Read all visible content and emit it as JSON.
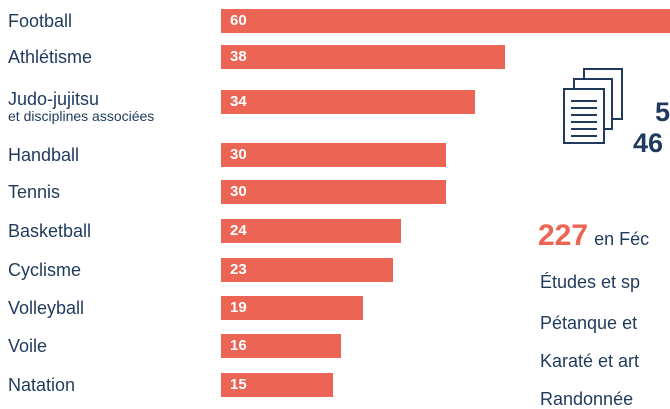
{
  "chart_data": {
    "type": "bar",
    "orientation": "horizontal",
    "categories": [
      {
        "label": "Football",
        "sublabel": ""
      },
      {
        "label": "Athlétisme",
        "sublabel": ""
      },
      {
        "label": "Judo-jujitsu",
        "sublabel": "et disciplines associées"
      },
      {
        "label": "Handball",
        "sublabel": ""
      },
      {
        "label": "Tennis",
        "sublabel": ""
      },
      {
        "label": "Basketball",
        "sublabel": ""
      },
      {
        "label": "Cyclisme",
        "sublabel": ""
      },
      {
        "label": "Volleyball",
        "sublabel": ""
      },
      {
        "label": "Voile",
        "sublabel": ""
      },
      {
        "label": "Natation",
        "sublabel": ""
      }
    ],
    "values": [
      60,
      38,
      34,
      30,
      30,
      24,
      23,
      19,
      16,
      15
    ],
    "xlim": [
      0,
      60
    ],
    "bar_color": "#ec6453",
    "grid": false,
    "legend": "none"
  },
  "sidebar": {
    "icon": "documents-icon",
    "stat_top": "5",
    "stat_bottom": "46",
    "federations_count": "227",
    "federations_text": "en Féc",
    "other_sports": [
      "Études et sp",
      "Pétanque et",
      "Karaté et art",
      "Randonnée"
    ]
  },
  "colors": {
    "accent": "#ec6453",
    "text": "#1f3a5c"
  }
}
